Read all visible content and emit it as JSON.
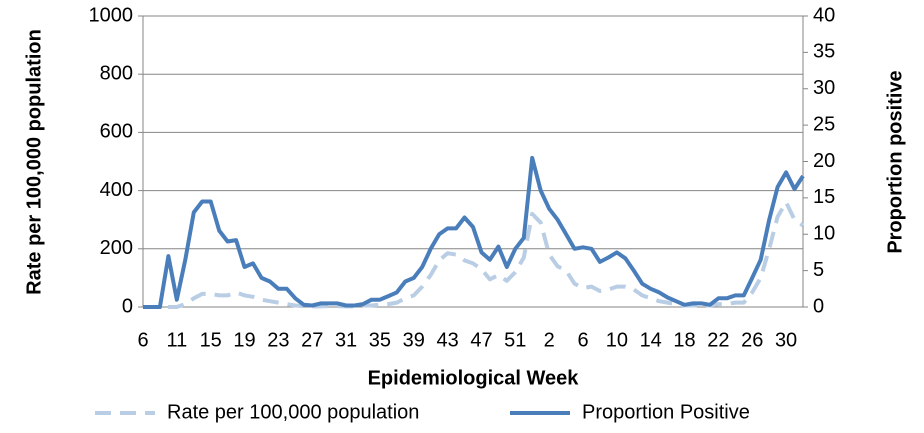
{
  "chart_data": {
    "type": "line",
    "x_label": "Epidemiological Week",
    "y_label": "Rate per 100,000 population",
    "y2_label": "Proportion positive",
    "categories": [
      "6",
      null,
      null,
      null,
      "11",
      null,
      null,
      null,
      "15",
      null,
      null,
      null,
      "19",
      null,
      null,
      null,
      "23",
      null,
      null,
      null,
      "27",
      null,
      null,
      null,
      "31",
      null,
      null,
      null,
      "35",
      null,
      null,
      null,
      "39",
      null,
      null,
      null,
      "43",
      null,
      null,
      null,
      "47",
      null,
      null,
      null,
      "51",
      null,
      null,
      null,
      "2",
      null,
      null,
      null,
      "6",
      null,
      null,
      null,
      "10",
      null,
      null,
      null,
      "14",
      null,
      null,
      null,
      "18",
      null,
      null,
      null,
      "22",
      null,
      null,
      null,
      "26",
      null,
      null,
      null,
      "30",
      null,
      null
    ],
    "ylim": [
      0,
      1000
    ],
    "yticks": [
      0,
      200,
      400,
      600,
      800,
      1000
    ],
    "y2lim": [
      0,
      40
    ],
    "y2ticks": [
      0,
      5,
      10,
      15,
      20,
      25,
      30,
      35,
      40
    ],
    "grid": true,
    "series": [
      {
        "name": "Rate per 100,000 population",
        "color": "#b9cde5",
        "dashed": true,
        "values": [
          0,
          0,
          0,
          0,
          0,
          10,
          30,
          45,
          45,
          40,
          40,
          50,
          40,
          35,
          25,
          20,
          15,
          10,
          5,
          3,
          2,
          2,
          3,
          3,
          2,
          2,
          5,
          5,
          8,
          10,
          15,
          30,
          40,
          70,
          110,
          160,
          185,
          180,
          160,
          150,
          130,
          95,
          110,
          90,
          120,
          170,
          320,
          290,
          180,
          140,
          125,
          80,
          65,
          70,
          55,
          60,
          70,
          70,
          60,
          40,
          30,
          20,
          15,
          10,
          5,
          5,
          5,
          5,
          10,
          10,
          15,
          15,
          50,
          100,
          200,
          310,
          360,
          300,
          280
        ]
      },
      {
        "name": "Proportion Positive",
        "color": "#4a7ebb",
        "axis": "y2",
        "values": [
          0,
          0,
          0,
          7,
          1,
          6.5,
          13,
          14.5,
          14.5,
          10.5,
          9,
          9.2,
          5.5,
          6,
          4,
          3.5,
          2.5,
          2.5,
          1.2,
          0.3,
          0.2,
          0.5,
          0.5,
          0.5,
          0.2,
          0.2,
          0.4,
          1,
          1,
          1.5,
          2,
          3.5,
          4,
          5.5,
          8,
          10,
          10.8,
          10.8,
          12.3,
          11,
          7.5,
          6.5,
          8.3,
          5.5,
          8,
          9.5,
          20.5,
          16,
          13.5,
          12,
          10,
          8,
          8.2,
          8,
          6.2,
          6.8,
          7.5,
          6.7,
          5,
          3.2,
          2.5,
          2,
          1.3,
          0.8,
          0.3,
          0.5,
          0.5,
          0.3,
          1.2,
          1.2,
          1.6,
          1.6,
          4,
          6.5,
          12,
          16.5,
          18.5,
          16.2,
          18
        ]
      }
    ]
  }
}
